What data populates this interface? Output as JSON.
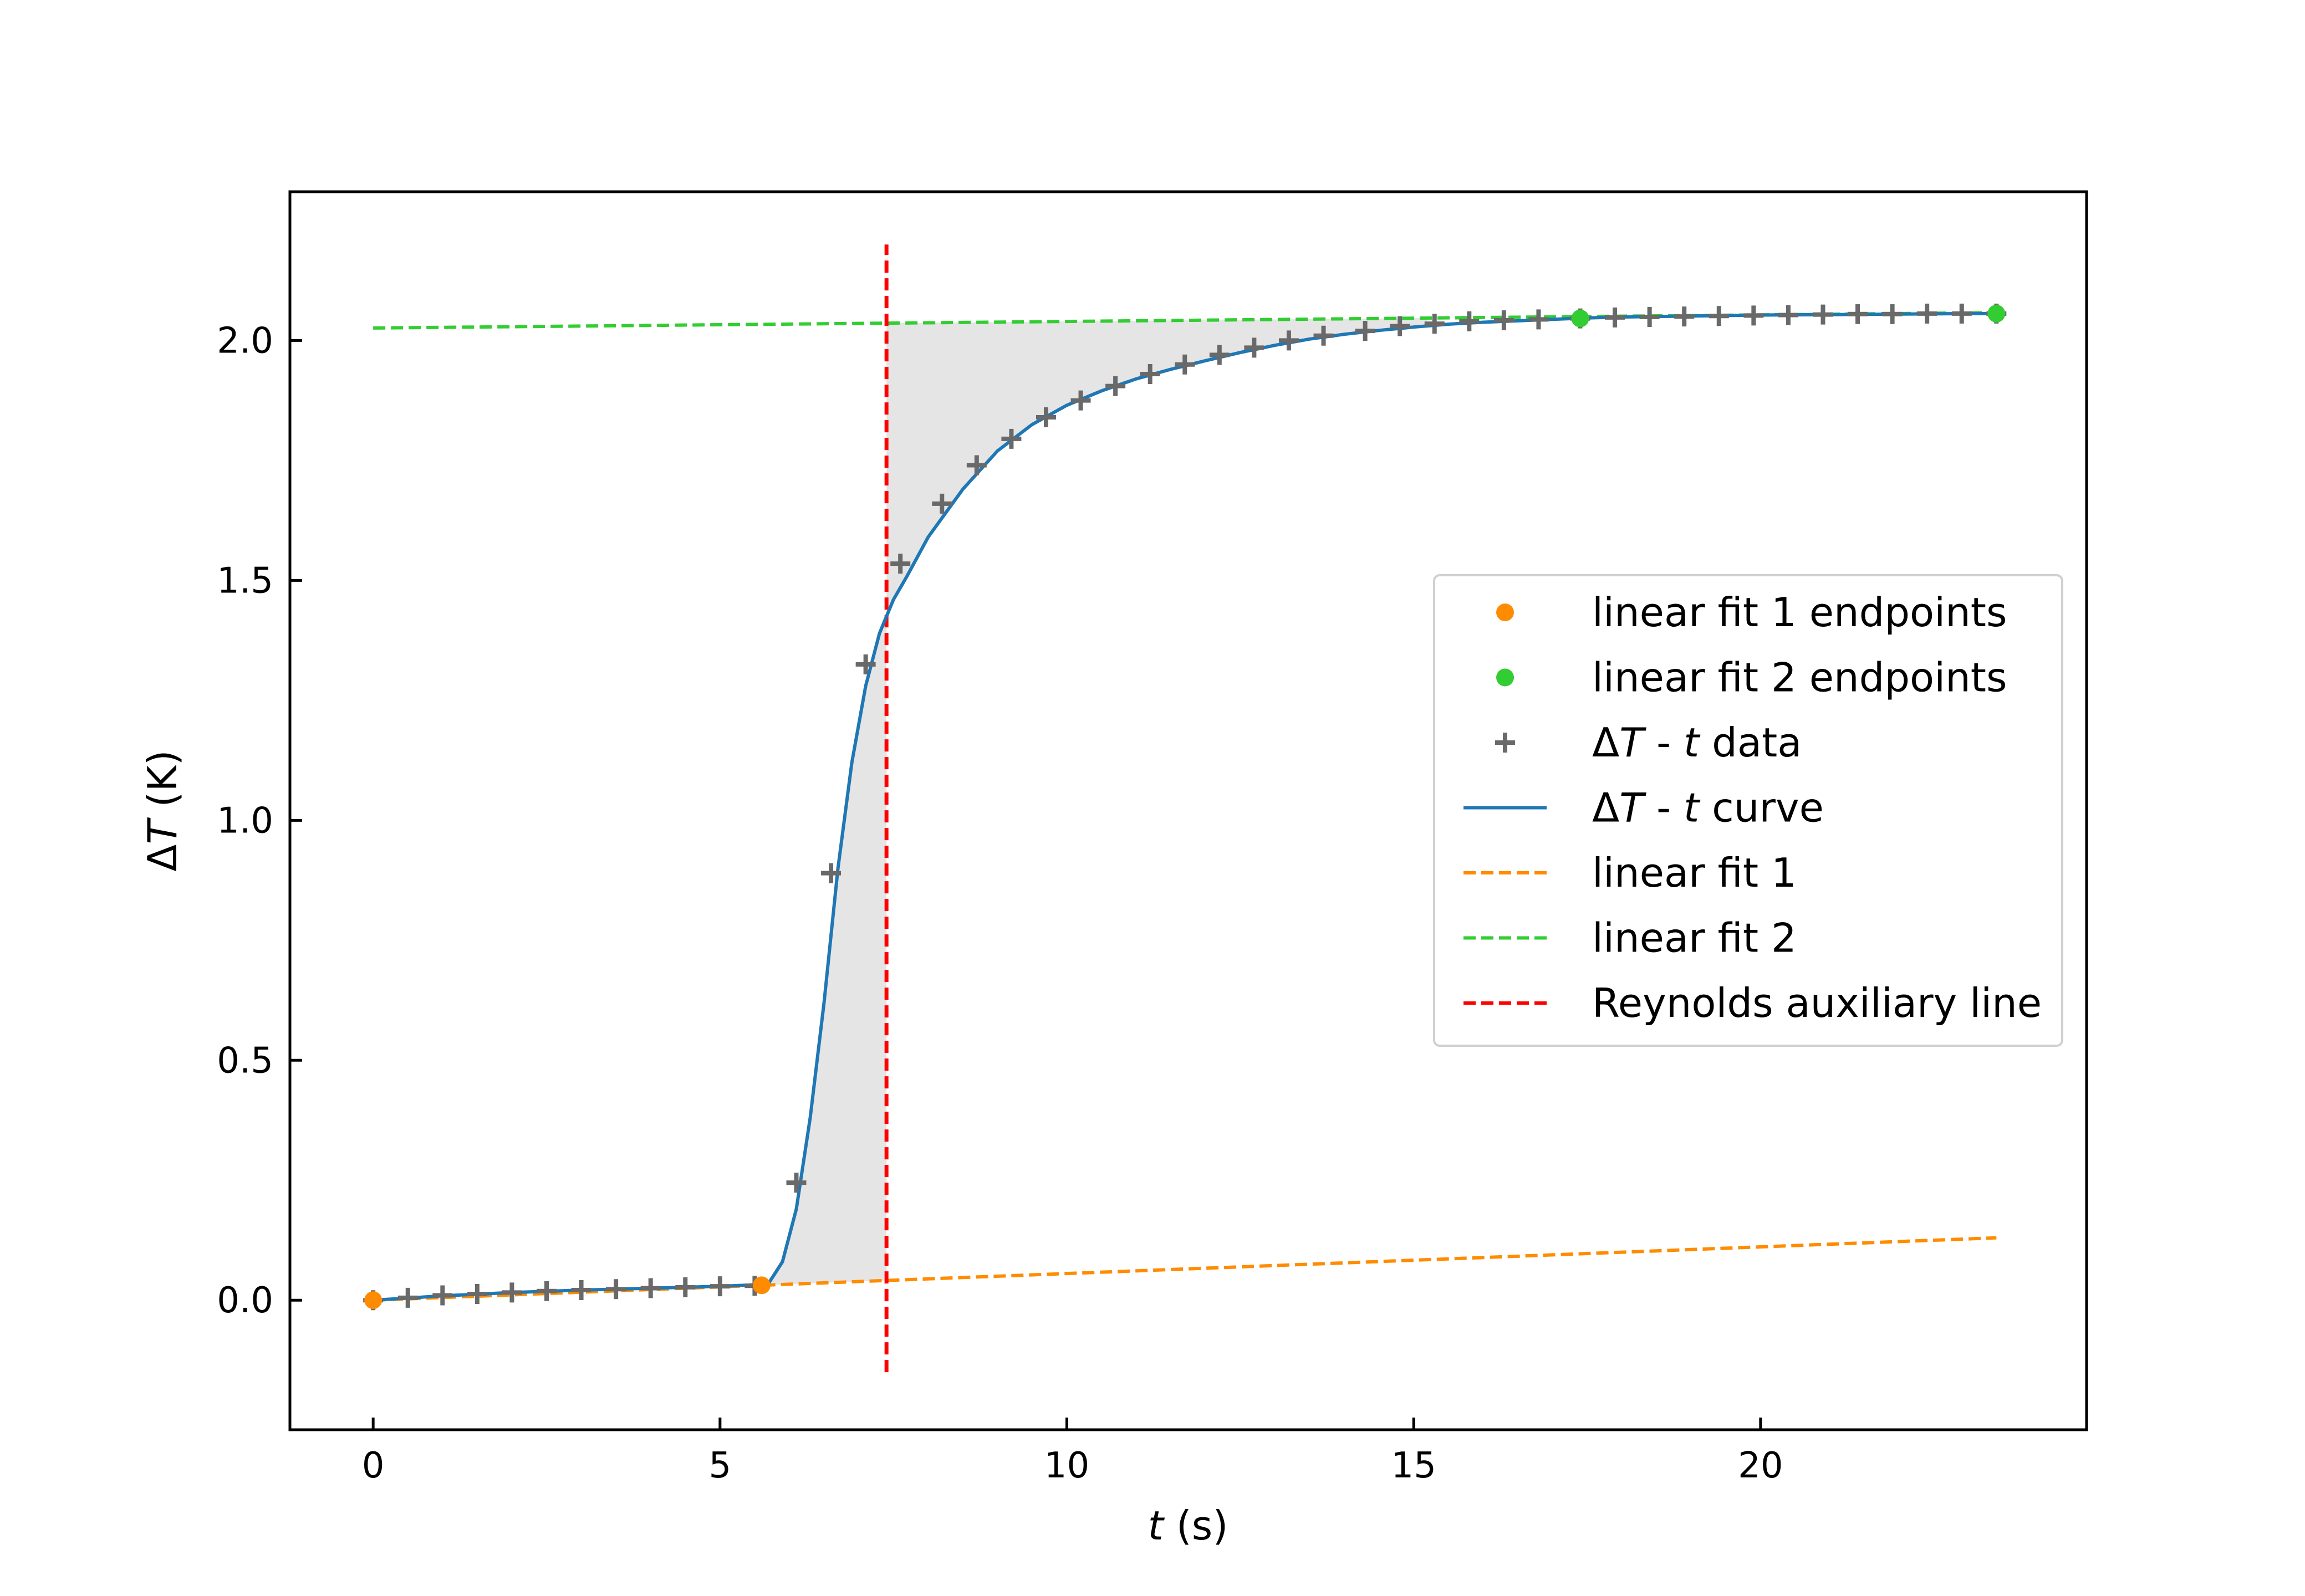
{
  "chart_data": {
    "type": "line",
    "xlabel": {
      "var": "t",
      "unit": " (s)"
    },
    "ylabel": {
      "delta": "Δ",
      "var": "T",
      "unit": " (K)"
    },
    "xlim": [
      -1.2,
      24.7
    ],
    "ylim": [
      -0.27,
      2.31
    ],
    "xticks": [
      0,
      5,
      10,
      15,
      20
    ],
    "xtick_labels": [
      "0",
      "5",
      "10",
      "15",
      "20"
    ],
    "yticks": [
      0.0,
      0.5,
      1.0,
      1.5,
      2.0
    ],
    "ytick_labels": [
      "0.0",
      "0.5",
      "1.0",
      "1.5",
      "2.0"
    ],
    "grid": false,
    "legend_position": "center-right",
    "colors": {
      "data": "#696969",
      "curve": "#1f77b4",
      "fit1": "#ff8c00",
      "fit2": "#32cd32",
      "reynolds": "#ff0000",
      "shade": "#d3d3d3"
    },
    "legend": [
      {
        "kind": "dot",
        "color_key": "fit1",
        "parts": [
          {
            "t": "linear fit 1 endpoints"
          }
        ]
      },
      {
        "kind": "dot",
        "color_key": "fit2",
        "parts": [
          {
            "t": "linear fit 2 endpoints"
          }
        ]
      },
      {
        "kind": "plus",
        "color_key": "data",
        "parts": [
          {
            "t": "Δ"
          },
          {
            "t": "T",
            "it": true
          },
          {
            "t": " - "
          },
          {
            "t": "t",
            "it": true
          },
          {
            "t": " data"
          }
        ]
      },
      {
        "kind": "line",
        "color_key": "curve",
        "parts": [
          {
            "t": "Δ"
          },
          {
            "t": "T",
            "it": true
          },
          {
            "t": " - "
          },
          {
            "t": "t",
            "it": true
          },
          {
            "t": " curve"
          }
        ]
      },
      {
        "kind": "dash",
        "color_key": "fit1",
        "parts": [
          {
            "t": "linear fit 1"
          }
        ]
      },
      {
        "kind": "dash",
        "color_key": "fit2",
        "parts": [
          {
            "t": "linear fit 2"
          }
        ]
      },
      {
        "kind": "dash",
        "color_key": "reynolds",
        "parts": [
          {
            "t": "Reynolds auxiliary line"
          }
        ]
      }
    ],
    "series": {
      "data": {
        "x": [
          0.0,
          0.5,
          1.0,
          1.5,
          2.0,
          2.5,
          3.0,
          3.5,
          4.0,
          4.5,
          5.0,
          5.5,
          6.1,
          6.6,
          7.1,
          7.6,
          8.2,
          8.7,
          9.2,
          9.7,
          10.2,
          10.7,
          11.2,
          11.7,
          12.2,
          12.7,
          13.2,
          13.7,
          14.3,
          14.8,
          15.3,
          15.8,
          16.3,
          16.8,
          17.4,
          17.9,
          18.4,
          18.9,
          19.4,
          19.9,
          20.4,
          20.9,
          21.4,
          21.9,
          22.4,
          22.9,
          23.4
        ],
        "y": [
          0.0,
          0.005,
          0.01,
          0.013,
          0.016,
          0.019,
          0.021,
          0.023,
          0.025,
          0.027,
          0.029,
          0.03,
          0.245,
          0.89,
          1.325,
          1.535,
          1.66,
          1.74,
          1.795,
          1.84,
          1.875,
          1.905,
          1.93,
          1.95,
          1.97,
          1.985,
          2.0,
          2.01,
          2.02,
          2.03,
          2.035,
          2.04,
          2.042,
          2.044,
          2.046,
          2.048,
          2.049,
          2.05,
          2.051,
          2.052,
          2.053,
          2.054,
          2.055,
          2.055,
          2.056,
          2.056,
          2.056
        ]
      },
      "curve": {
        "x": [
          0.0,
          1.0,
          2.0,
          3.0,
          4.0,
          5.0,
          5.5,
          5.7,
          5.9,
          6.1,
          6.3,
          6.5,
          6.7,
          6.9,
          7.1,
          7.3,
          7.5,
          7.7,
          8.0,
          8.5,
          9.0,
          9.5,
          10.0,
          10.5,
          11.0,
          11.5,
          12.0,
          12.5,
          13.0,
          13.5,
          14.0,
          14.5,
          15.0,
          15.5,
          16.0,
          16.5,
          17.0,
          17.5,
          18.0,
          19.0,
          20.0,
          21.0,
          22.0,
          23.0,
          23.4
        ],
        "y": [
          0.0,
          0.009,
          0.016,
          0.021,
          0.025,
          0.029,
          0.032,
          0.035,
          0.08,
          0.19,
          0.38,
          0.62,
          0.9,
          1.12,
          1.28,
          1.39,
          1.46,
          1.51,
          1.59,
          1.69,
          1.77,
          1.825,
          1.865,
          1.895,
          1.92,
          1.94,
          1.958,
          1.975,
          1.99,
          2.003,
          2.013,
          2.021,
          2.028,
          2.034,
          2.038,
          2.041,
          2.044,
          2.047,
          2.049,
          2.051,
          2.053,
          2.054,
          2.055,
          2.056,
          2.056
        ]
      },
      "fit1": {
        "x": [
          0.0,
          23.4
        ],
        "y": [
          0.0,
          0.13
        ]
      },
      "fit2": {
        "x": [
          0.0,
          23.4
        ],
        "y": [
          2.026,
          2.058
        ]
      },
      "fit1_endpoints": {
        "x": [
          0.0,
          5.6
        ],
        "y": [
          0.0,
          0.031
        ]
      },
      "fit2_endpoints": {
        "x": [
          17.4,
          23.4
        ],
        "y": [
          2.046,
          2.056
        ]
      },
      "reynolds": {
        "x": 7.4,
        "y": [
          -0.15,
          2.2
        ]
      },
      "shade_end_x": 15.2
    }
  }
}
